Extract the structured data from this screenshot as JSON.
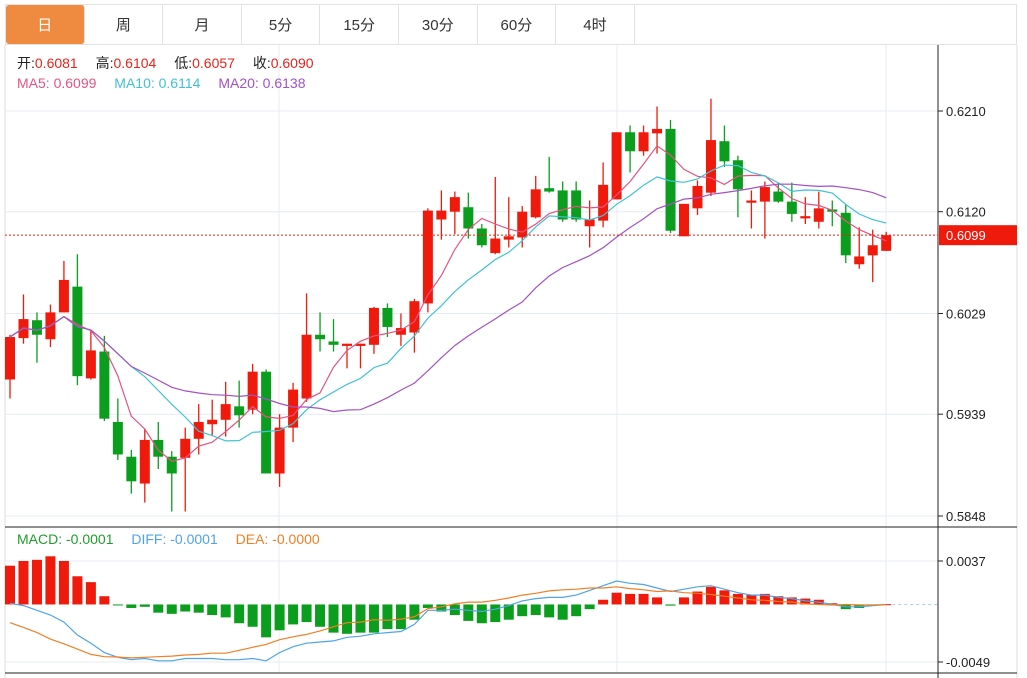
{
  "tabs": [
    {
      "label": "日",
      "active": true
    },
    {
      "label": "周"
    },
    {
      "label": "月"
    },
    {
      "label": "5分"
    },
    {
      "label": "15分"
    },
    {
      "label": "30分"
    },
    {
      "label": "60分"
    },
    {
      "label": "4时"
    }
  ],
  "ohlc_legend": {
    "open_label": "开:",
    "open": "0.6081",
    "high_label": "高:",
    "high": "0.6104",
    "low_label": "低:",
    "low": "0.6057",
    "close_label": "收:",
    "close": "0.6090"
  },
  "ma_legend": {
    "ma5": "MA5: 0.6099",
    "ma10": "MA10: 0.6114",
    "ma20": "MA20: 0.6138"
  },
  "macd_legend": {
    "macd": "MACD: -0.0001",
    "diff": "DIFF: -0.0001",
    "dea": "DEA: -0.0000"
  },
  "colors": {
    "up": "#f01a0c",
    "down": "#0b9e1e",
    "ma5": "#e35480",
    "ma10": "#3fc2d4",
    "ma20": "#a352c4",
    "diff": "#4ea4e6",
    "dea": "#f07f24",
    "accent": "#ef8b40"
  },
  "chart_data": [
    {
      "type": "candlestick",
      "title": "K-line",
      "y_ticks": [
        "0.6210",
        "0.6120",
        "0.6029",
        "0.5939",
        "0.5848"
      ],
      "ylim": [
        0.5848,
        0.621
      ],
      "last_price": "0.6099",
      "ma_periods": [
        5,
        10,
        20
      ],
      "candles_ohlc": [
        [
          0.597,
          0.601,
          0.5953,
          0.6008
        ],
        [
          0.6007,
          0.6046,
          0.6002,
          0.6024
        ],
        [
          0.6023,
          0.603,
          0.5985,
          0.601
        ],
        [
          0.6006,
          0.6037,
          0.5999,
          0.603
        ],
        [
          0.603,
          0.6076,
          0.603,
          0.6059
        ],
        [
          0.6053,
          0.6082,
          0.5965,
          0.5973
        ],
        [
          0.5971,
          0.6014,
          0.597,
          0.5996
        ],
        [
          0.5995,
          0.6009,
          0.5933,
          0.5935
        ],
        [
          0.5932,
          0.5953,
          0.5898,
          0.5903
        ],
        [
          0.5901,
          0.5907,
          0.5868,
          0.5879
        ],
        [
          0.5877,
          0.5926,
          0.586,
          0.5916
        ],
        [
          0.5916,
          0.5932,
          0.589,
          0.5901
        ],
        [
          0.5901,
          0.5906,
          0.5852,
          0.5886
        ],
        [
          0.59,
          0.5927,
          0.5852,
          0.5917
        ],
        [
          0.5917,
          0.5948,
          0.5903,
          0.5932
        ],
        [
          0.593,
          0.5952,
          0.592,
          0.5934
        ],
        [
          0.5934,
          0.5968,
          0.5919,
          0.5948
        ],
        [
          0.5946,
          0.5969,
          0.5927,
          0.5938
        ],
        [
          0.5943,
          0.5984,
          0.5939,
          0.5977
        ],
        [
          0.5977,
          0.5979,
          0.5886,
          0.5886
        ],
        [
          0.5886,
          0.5939,
          0.5874,
          0.5927
        ],
        [
          0.5927,
          0.5967,
          0.5914,
          0.5961
        ],
        [
          0.5953,
          0.6047,
          0.595,
          0.601
        ],
        [
          0.601,
          0.603,
          0.5995,
          0.6006
        ],
        [
          0.6004,
          0.6024,
          0.5995,
          0.6001
        ],
        [
          0.6,
          0.6002,
          0.598,
          0.6002
        ],
        [
          0.6,
          0.6002,
          0.598,
          0.6002
        ],
        [
          0.6001,
          0.6035,
          0.5993,
          0.6034
        ],
        [
          0.6034,
          0.6038,
          0.6008,
          0.6017
        ],
        [
          0.601,
          0.6029,
          0.6,
          0.6016
        ],
        [
          0.6012,
          0.6042,
          0.5994,
          0.604
        ],
        [
          0.6038,
          0.6123,
          0.603,
          0.6121
        ],
        [
          0.6113,
          0.6139,
          0.6095,
          0.6121
        ],
        [
          0.612,
          0.6138,
          0.61,
          0.6133
        ],
        [
          0.6124,
          0.6137,
          0.6096,
          0.6105
        ],
        [
          0.6105,
          0.6109,
          0.6088,
          0.609
        ],
        [
          0.6083,
          0.6151,
          0.6082,
          0.6096
        ],
        [
          0.6095,
          0.6133,
          0.6088,
          0.6098
        ],
        [
          0.6097,
          0.6125,
          0.6088,
          0.612
        ],
        [
          0.6115,
          0.6152,
          0.6114,
          0.614
        ],
        [
          0.6141,
          0.6169,
          0.6137,
          0.6138
        ],
        [
          0.6139,
          0.6147,
          0.6111,
          0.6113
        ],
        [
          0.6139,
          0.6147,
          0.6111,
          0.6113
        ],
        [
          0.6107,
          0.613,
          0.6088,
          0.6113
        ],
        [
          0.6112,
          0.6164,
          0.6106,
          0.6144
        ],
        [
          0.6131,
          0.6191,
          0.6131,
          0.6191
        ],
        [
          0.6191,
          0.6197,
          0.6155,
          0.6174
        ],
        [
          0.6174,
          0.6197,
          0.617,
          0.6191
        ],
        [
          0.619,
          0.6214,
          0.6172,
          0.6194
        ],
        [
          0.6194,
          0.6202,
          0.6101,
          0.6103
        ],
        [
          0.6098,
          0.6127,
          0.6098,
          0.6127
        ],
        [
          0.6123,
          0.6148,
          0.6117,
          0.6143
        ],
        [
          0.6137,
          0.6221,
          0.6134,
          0.6184
        ],
        [
          0.6183,
          0.6197,
          0.616,
          0.6165
        ],
        [
          0.6166,
          0.617,
          0.6115,
          0.614
        ],
        [
          0.6128,
          0.6139,
          0.6105,
          0.613
        ],
        [
          0.6129,
          0.6147,
          0.6096,
          0.6142
        ],
        [
          0.6138,
          0.6146,
          0.6128,
          0.6129
        ],
        [
          0.6129,
          0.6146,
          0.6111,
          0.6118
        ],
        [
          0.6114,
          0.6133,
          0.6109,
          0.6116
        ],
        [
          0.6111,
          0.6138,
          0.6105,
          0.6123
        ],
        [
          0.6122,
          0.613,
          0.6107,
          0.612
        ],
        [
          0.6119,
          0.6126,
          0.6074,
          0.6081
        ],
        [
          0.6073,
          0.6106,
          0.6069,
          0.608
        ],
        [
          0.6081,
          0.6104,
          0.6057,
          0.609
        ],
        [
          0.6085,
          0.6102,
          0.6085,
          0.6099
        ]
      ]
    },
    {
      "type": "bar",
      "title": "MACD",
      "y_ticks": [
        "0.0037",
        "-0.0049"
      ],
      "ylim": [
        -0.0049,
        0.0037
      ],
      "macd": [
        0.0033,
        0.0037,
        0.0038,
        0.0041,
        0.0037,
        0.0024,
        0.0019,
        0.0007,
        -5e-05,
        -0.0003,
        -0.0002,
        -0.0007,
        -0.0008,
        -0.0006,
        -0.0007,
        -0.0009,
        -0.0011,
        -0.0016,
        -0.0019,
        -0.0028,
        -0.0022,
        -0.0017,
        -0.0015,
        -0.0019,
        -0.0024,
        -0.0025,
        -0.0024,
        -0.0024,
        -0.0021,
        -0.0021,
        -0.0013,
        -0.0003,
        -0.0006,
        -0.0009,
        -0.0014,
        -0.0016,
        -0.0015,
        -0.0013,
        -0.001,
        -0.0009,
        -0.0011,
        -0.0013,
        -0.001,
        -0.0004,
        0.0004,
        0.001,
        0.0009,
        0.0009,
        0.0006,
        -0.0001,
        0.0006,
        0.0011,
        0.0015,
        0.0012,
        0.0009,
        0.0008,
        0.0009,
        0.0007,
        0.0006,
        0.0005,
        0.0004,
        0.0001,
        -0.0004,
        -0.0003,
        -0.0001,
        2e-05
      ],
      "diff": [
        0.0001,
        -0.0001,
        -0.0005,
        -0.0009,
        -0.0015,
        -0.0026,
        -0.0033,
        -0.0041,
        -0.0045,
        -0.0047,
        -0.0046,
        -0.0048,
        -0.0048,
        -0.0046,
        -0.0046,
        -0.0046,
        -0.0047,
        -0.0047,
        -0.0046,
        -0.0048,
        -0.0041,
        -0.0036,
        -0.0033,
        -0.0032,
        -0.0031,
        -0.0028,
        -0.0027,
        -0.0025,
        -0.0024,
        -0.0023,
        -0.0017,
        -0.0005,
        -0.0005,
        -0.0004,
        -0.0005,
        -0.0006,
        -0.0004,
        -0.0001,
        0.0003,
        0.0005,
        0.0006,
        0.0006,
        0.0008,
        0.0012,
        0.0016,
        0.002,
        0.0018,
        0.0017,
        0.0014,
        0.0011,
        0.0013,
        0.0015,
        0.0016,
        0.0013,
        0.001,
        0.0008,
        0.0008,
        0.0006,
        0.0005,
        0.0003,
        0.0002,
        0.0,
        -0.0002,
        -0.0002,
        -0.0001,
        0.0
      ]
    }
  ]
}
